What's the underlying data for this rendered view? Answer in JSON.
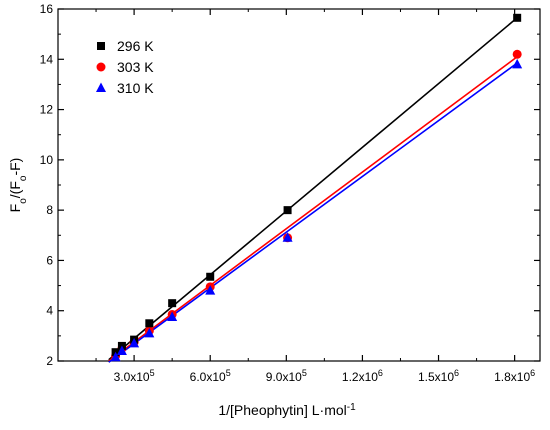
{
  "chart_data": {
    "type": "scatter",
    "xlabel": "1/[Pheophytin] L·mol⁻¹",
    "ylabel": "Fo/(Fo-F)",
    "xlim": [
      0,
      1900000
    ],
    "ylim": [
      2,
      16
    ],
    "x_ticks": [
      {
        "value": 300000,
        "mant": "3.0x10",
        "exp": "5"
      },
      {
        "value": 600000,
        "mant": "6.0x10",
        "exp": "5"
      },
      {
        "value": 900000,
        "mant": "9.0x10",
        "exp": "5"
      },
      {
        "value": 1200000,
        "mant": "1.2x10",
        "exp": "6"
      },
      {
        "value": 1500000,
        "mant": "1.5x10",
        "exp": "6"
      },
      {
        "value": 1800000,
        "mant": "1.8x10",
        "exp": "6"
      }
    ],
    "y_ticks": [
      2,
      4,
      6,
      8,
      10,
      12,
      14,
      16
    ],
    "grid": false,
    "legend_position": "top-left",
    "x": [
      227000,
      252000,
      300000,
      360000,
      450000,
      600000,
      905000,
      1810000
    ],
    "series": [
      {
        "name": "296 K",
        "marker": "square",
        "color": "#000000",
        "values": [
          2.35,
          2.6,
          2.85,
          3.5,
          4.3,
          5.35,
          8.0,
          15.65
        ],
        "fit": [
          [
            200000,
            2.05
          ],
          [
            1810000,
            15.65
          ]
        ]
      },
      {
        "name": "303 K",
        "marker": "circle",
        "color": "#ff0000",
        "values": [
          2.2,
          2.5,
          2.75,
          3.2,
          3.85,
          4.95,
          6.9,
          14.2
        ],
        "fit": [
          [
            200000,
            2.0
          ],
          [
            1810000,
            14.1
          ]
        ]
      },
      {
        "name": "310 K",
        "marker": "triangle",
        "color": "#0000ff",
        "values": [
          2.15,
          2.4,
          2.7,
          3.1,
          3.75,
          4.8,
          6.9,
          13.8
        ],
        "fit": [
          [
            200000,
            1.95
          ],
          [
            1810000,
            13.85
          ]
        ]
      }
    ]
  }
}
